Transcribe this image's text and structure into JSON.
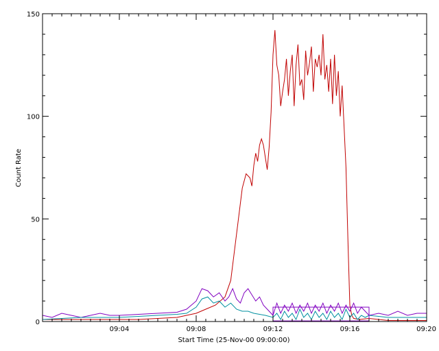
{
  "chart_data": {
    "type": "line",
    "xlabel": "Start Time (25-Nov-00 09:00:00)",
    "ylabel": "Count Rate",
    "x_unit": "minutes after 09:00",
    "xlim": [
      0,
      20
    ],
    "ylim": [
      0,
      150
    ],
    "x_ticks": [
      {
        "value": 4,
        "label": "09:04"
      },
      {
        "value": 8,
        "label": "09:08"
      },
      {
        "value": 12,
        "label": "09:12"
      },
      {
        "value": 16,
        "label": "09:16"
      },
      {
        "value": 20,
        "label": "09:20"
      }
    ],
    "y_ticks": [
      {
        "value": 0,
        "label": "0"
      },
      {
        "value": 50,
        "label": "50"
      },
      {
        "value": 100,
        "label": "100"
      },
      {
        "value": 150,
        "label": "150"
      }
    ],
    "grid": false,
    "legend": "none",
    "highlight_box": {
      "x0": 12.0,
      "x1": 17.0,
      "y0": 0.3,
      "y1": 7.0
    },
    "series": [
      {
        "color": "#c00000",
        "x": [
          0,
          1,
          2,
          3,
          4,
          5,
          6,
          7,
          7.5,
          8,
          8.5,
          9,
          9.5,
          9.8,
          10.0,
          10.2,
          10.4,
          10.6,
          10.8,
          10.9,
          11.0,
          11.1,
          11.2,
          11.3,
          11.4,
          11.5,
          11.6,
          11.7,
          11.8,
          11.9,
          12.0,
          12.1,
          12.2,
          12.3,
          12.4,
          12.5,
          12.6,
          12.7,
          12.8,
          12.9,
          13.0,
          13.1,
          13.2,
          13.3,
          13.4,
          13.5,
          13.6,
          13.7,
          13.8,
          13.9,
          14.0,
          14.1,
          14.2,
          14.3,
          14.4,
          14.5,
          14.6,
          14.7,
          14.8,
          14.9,
          15.0,
          15.1,
          15.2,
          15.3,
          15.4,
          15.5,
          15.6,
          15.7,
          15.8,
          15.9,
          16.0,
          16.1,
          16.2,
          16.5,
          17,
          18,
          19,
          20
        ],
        "y": [
          1,
          1,
          1,
          1,
          1,
          1,
          1.5,
          2,
          3,
          4,
          6,
          8,
          12,
          20,
          35,
          50,
          65,
          72,
          70,
          66,
          76,
          82,
          78,
          86,
          89,
          86,
          80,
          74,
          85,
          102,
          130,
          142,
          125,
          120,
          105,
          112,
          118,
          128,
          110,
          122,
          130,
          105,
          125,
          135,
          115,
          118,
          108,
          132,
          120,
          126,
          134,
          112,
          128,
          124,
          130,
          120,
          140,
          118,
          125,
          112,
          128,
          106,
          130,
          110,
          122,
          100,
          115,
          95,
          75,
          40,
          8,
          3,
          1.5,
          1,
          1.5,
          0.5,
          0.5,
          0.5
        ]
      },
      {
        "color": "#8000c0",
        "x": [
          0,
          0.5,
          1,
          1.5,
          2,
          2.5,
          3,
          3.5,
          4,
          5,
          6,
          7,
          7.5,
          8.0,
          8.3,
          8.6,
          8.9,
          9.2,
          9.5,
          9.7,
          9.9,
          10.1,
          10.3,
          10.5,
          10.7,
          10.9,
          11.1,
          11.3,
          11.5,
          11.8,
          12.0,
          12.2,
          12.4,
          12.6,
          12.8,
          13.0,
          13.2,
          13.4,
          13.6,
          13.8,
          14.0,
          14.2,
          14.4,
          14.6,
          14.8,
          15.0,
          15.2,
          15.4,
          15.6,
          15.8,
          16.0,
          16.2,
          16.4,
          16.6,
          16.8,
          17.0,
          17.5,
          18,
          18.5,
          19,
          19.5,
          20
        ],
        "y": [
          3,
          2,
          4,
          3,
          2,
          3,
          4,
          3,
          3,
          3.5,
          4,
          4.5,
          6,
          10,
          16,
          15,
          12,
          14,
          10,
          12,
          16,
          11,
          9,
          14,
          16,
          13,
          10,
          12,
          8,
          5,
          3,
          9,
          4,
          8,
          5,
          9,
          4,
          8,
          5,
          9,
          4,
          8,
          5,
          9,
          4,
          8,
          5,
          9,
          4,
          8,
          5,
          9,
          4,
          7,
          5,
          3,
          4,
          3,
          5,
          3,
          4,
          4
        ]
      },
      {
        "color": "#0090a0",
        "x": [
          0,
          1,
          2,
          3,
          4,
          5,
          6,
          7,
          7.5,
          8.0,
          8.3,
          8.6,
          8.9,
          9.2,
          9.5,
          9.8,
          10.1,
          10.4,
          10.7,
          11.0,
          11.3,
          11.6,
          12.0,
          12.2,
          12.4,
          12.6,
          12.8,
          13.0,
          13.2,
          13.4,
          13.6,
          13.8,
          14.0,
          14.2,
          14.4,
          14.6,
          14.8,
          15.0,
          15.2,
          15.4,
          15.6,
          15.8,
          16.0,
          16.2,
          16.4,
          16.6,
          16.8,
          17.0,
          17.5,
          18,
          19,
          20
        ],
        "y": [
          1,
          1.5,
          2,
          2,
          2,
          2.5,
          3,
          3.5,
          4,
          7,
          11,
          12,
          9,
          10,
          7,
          9,
          6,
          5,
          5,
          4,
          3.5,
          3,
          2,
          4,
          1,
          5,
          2,
          4,
          1,
          6,
          2,
          4,
          1,
          5,
          2,
          4,
          1,
          5,
          2,
          4,
          1,
          6,
          2,
          4,
          1,
          3,
          2,
          3,
          2.5,
          2,
          2,
          2
        ]
      }
    ]
  }
}
